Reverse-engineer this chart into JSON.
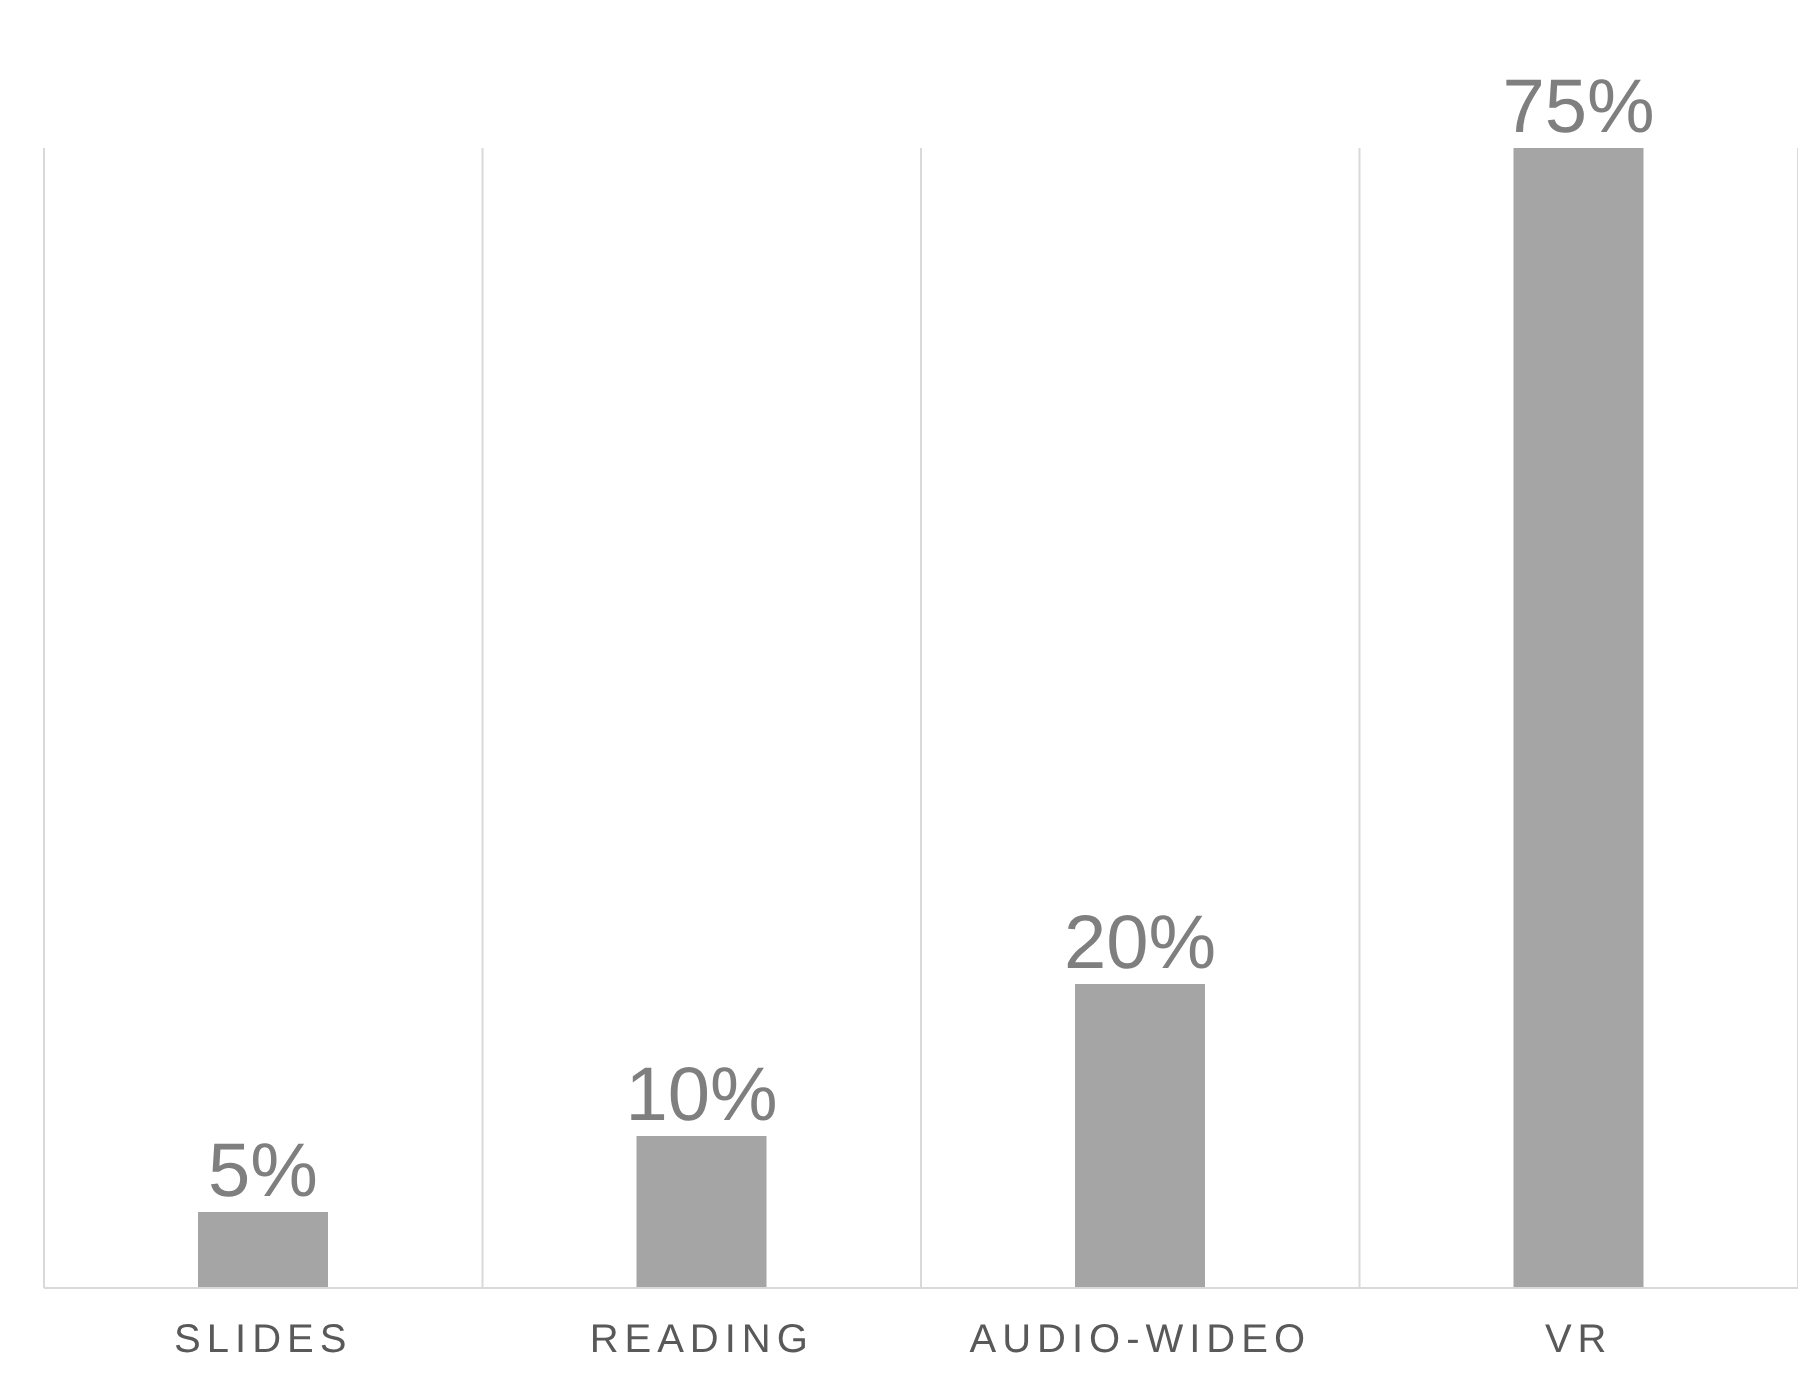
{
  "chart_data": {
    "type": "bar",
    "categories": [
      "SLIDES",
      "READING",
      "AUDIO-WIDEO",
      "VR"
    ],
    "values": [
      5,
      10,
      20,
      75
    ],
    "color": "#a5a5a5",
    "value_labels": [
      "5%",
      "10%",
      "20%",
      "75%"
    ],
    "grid": "x"
  }
}
